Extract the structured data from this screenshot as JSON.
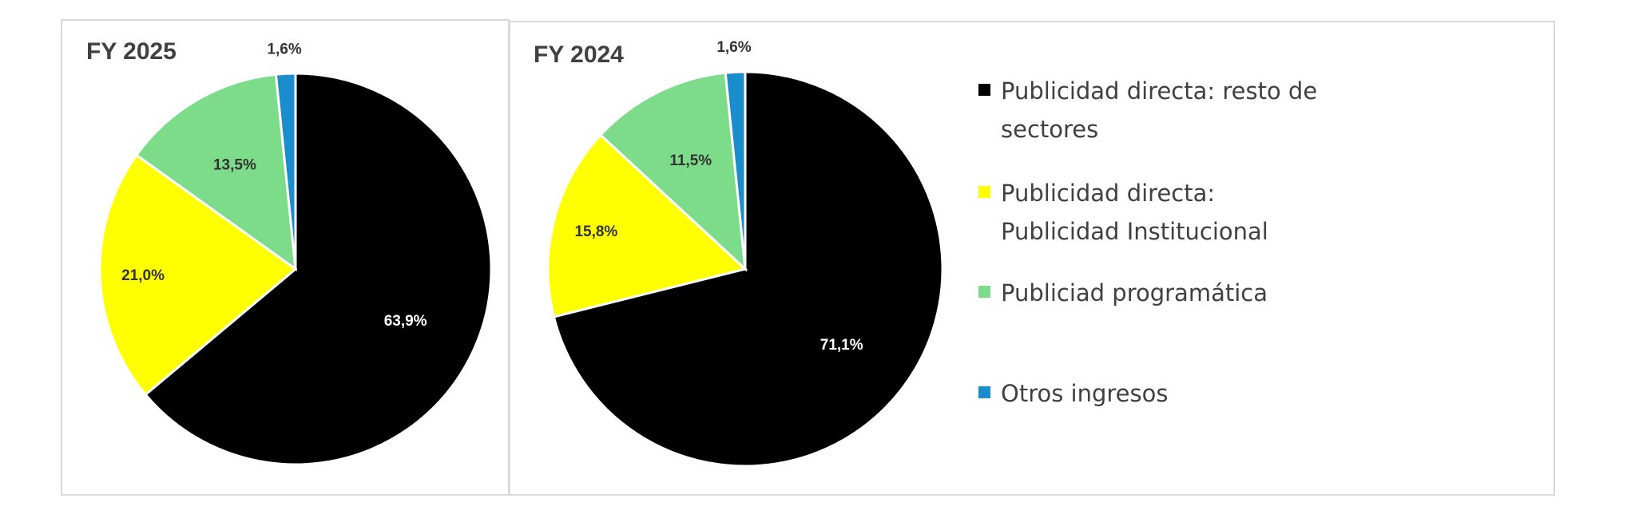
{
  "chart_data": [
    {
      "type": "pie",
      "title": "FY 2025",
      "categories": [
        "Publicidad directa: resto de sectores",
        "Publicidad directa: Publicidad Institucional",
        "Publiciad programática",
        "Otros ingresos"
      ],
      "values": [
        63.9,
        21.0,
        13.5,
        1.6
      ],
      "labels": [
        "63,9%",
        "21,0%",
        "13,5%",
        "1,6%"
      ]
    },
    {
      "type": "pie",
      "title": "FY 2024",
      "categories": [
        "Publicidad directa: resto de sectores",
        "Publicidad directa: Publicidad Institucional",
        "Publiciad programática",
        "Otros ingresos"
      ],
      "values": [
        71.1,
        15.8,
        11.5,
        1.6
      ],
      "labels": [
        "71,1%",
        "15,8%",
        "11,5%",
        "1,6%"
      ]
    }
  ],
  "legend": {
    "position": "right",
    "entries": [
      {
        "line1": "Publicidad directa: resto de",
        "line2": "sectores",
        "color": "#000000"
      },
      {
        "line1": "Publicidad directa:",
        "line2": "Publicidad Institucional",
        "color": "#ffff00"
      },
      {
        "line1": "Publiciad programática",
        "line2": "",
        "color": "#7ddc8a"
      },
      {
        "line1": "Otros ingresos",
        "line2": "",
        "color": "#1b8ccc"
      }
    ]
  },
  "colors": {
    "series": [
      "#000000",
      "#ffff00",
      "#7ddc8a",
      "#1b8ccc"
    ],
    "label_dark": "#333333",
    "label_light": "#ffffff"
  }
}
